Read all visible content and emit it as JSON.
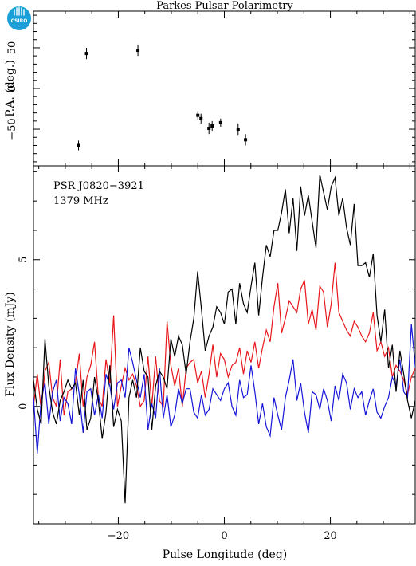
{
  "logo": {
    "text": "CSIRO",
    "color": "#1aa0d6"
  },
  "chart_data": [
    {
      "type": "scatter",
      "title": "Parkes Pulsar Polarimetry",
      "xlabel": "",
      "ylabel": "P.A. (deg.)",
      "xlim": [
        -36,
        36
      ],
      "ylim": [
        -95,
        95
      ],
      "yticks": [
        -50,
        0,
        50
      ],
      "points": [
        {
          "x": -27.5,
          "y": -70,
          "err": 6
        },
        {
          "x": -26.0,
          "y": 43,
          "err": 7
        },
        {
          "x": -16.3,
          "y": 47,
          "err": 7
        },
        {
          "x": -5.0,
          "y": -33,
          "err": 5
        },
        {
          "x": -4.4,
          "y": -37,
          "err": 6
        },
        {
          "x": -2.9,
          "y": -49,
          "err": 7
        },
        {
          "x": -2.3,
          "y": -46,
          "err": 6
        },
        {
          "x": -0.7,
          "y": -42,
          "err": 5
        },
        {
          "x": 2.6,
          "y": -50,
          "err": 7
        },
        {
          "x": 4.0,
          "y": -63,
          "err": 7
        }
      ]
    },
    {
      "type": "line",
      "xlabel": "Pulse Longitude (deg)",
      "ylabel": "Flux Density (mJy)",
      "xlim": [
        -36,
        36
      ],
      "ylim": [
        -4.0,
        8.2
      ],
      "xticks": [
        -20,
        0,
        20
      ],
      "yticks": [
        0,
        5
      ],
      "annotations": [
        "PSR J0820−3921",
        "1379 MHz"
      ],
      "x_start": -36.0,
      "x_step": 0.72,
      "series": [
        {
          "color": "#000000",
          "values": [
            0.9,
            -0.1,
            -0.6,
            2.3,
            0.7,
            -0.2,
            -0.6,
            0.2,
            0.5,
            0.9,
            0.6,
            0.8,
            -0.3,
            0.9,
            -0.8,
            -0.4,
            1.0,
            0.2,
            -1.1,
            -0.2,
            1.4,
            -0.7,
            -0.1,
            -0.5,
            -3.3,
            0.3,
            0.9,
            0.3,
            2.0,
            1.2,
            1.0,
            -0.8,
            0.7,
            1.2,
            1.0,
            0.6,
            2.3,
            1.7,
            2.4,
            2.1,
            1.1,
            2.2,
            3.0,
            4.6,
            3.3,
            1.9,
            2.4,
            2.7,
            3.4,
            3.2,
            2.8,
            3.9,
            4.0,
            2.8,
            4.2,
            3.5,
            3.2,
            4.1,
            4.9,
            3.1,
            4.4,
            5.5,
            5.1,
            6.0,
            6.0,
            6.6,
            7.4,
            5.9,
            7.1,
            5.3,
            7.5,
            6.5,
            7.2,
            6.3,
            5.4,
            7.9,
            7.3,
            6.7,
            7.5,
            7.8,
            6.5,
            7.1,
            6.1,
            5.5,
            6.9,
            4.8,
            4.8,
            4.9,
            4.4,
            5.2,
            3.1,
            2.2,
            3.3,
            1.3,
            2.1,
            0.5,
            1.9,
            1.1,
            0.2,
            -0.4,
            0.2,
            -0.5,
            0.9,
            1.0,
            0.5,
            0.7,
            0.2,
            -0.3,
            0.0,
            1.0,
            0.2,
            -0.6,
            0.2,
            0.8,
            -0.4,
            0.2,
            0.0,
            -0.6,
            0.6,
            1.1,
            0.2,
            -0.2,
            0.8,
            -0.3,
            -0.7,
            0.0,
            0.2,
            0.4,
            0.8,
            -0.6,
            1.2,
            0.4,
            0.8,
            0.2,
            0.6,
            1.0,
            0.0,
            -0.5,
            0.4,
            0.9,
            -0.3,
            0.3,
            0.2,
            -0.5,
            0.5,
            0.1,
            0.3,
            0.8,
            0.3,
            0.1,
            0.4,
            1.3,
            0.6,
            0.4,
            -0.5,
            0.3,
            0.5,
            0.9,
            0.7,
            0.3,
            0.3,
            0.0,
            1.0,
            1.2,
            0.9,
            0.0,
            0.7,
            0.0,
            0.9,
            0.8,
            0.2,
            0.2,
            1.2,
            0.6,
            0.4,
            0.3,
            0.5,
            1.2,
            0.8,
            0.0,
            -0.6,
            0.4,
            0.6,
            0.5,
            1.8,
            1.5,
            2.0,
            -1.4,
            0.4,
            0.6,
            0.7,
            0.1,
            -0.2,
            -0.6,
            0.4,
            0.2,
            -0.1,
            0.2,
            0.9,
            0.8,
            0.5,
            1.2,
            1.6,
            0.9,
            1.1,
            0.6,
            1.8,
            1.0,
            1.4,
            2.2,
            1.2,
            1.0,
            1.9,
            0.2,
            -0.5,
            0.0,
            2.0,
            0.7,
            0.0,
            -0.4
          ]
        },
        {
          "color": "#e8171c",
          "values": [
            0.0,
            1.1,
            -0.1,
            1.2,
            1.5,
            0.3,
            0.0,
            1.6,
            -0.3,
            0.5,
            0.6,
            0.8,
            1.8,
            0.0,
            1.0,
            1.4,
            2.2,
            0.3,
            0.0,
            1.6,
            0.8,
            3.1,
            0.0,
            0.7,
            1.3,
            0.9,
            1.1,
            0.7,
            0.0,
            0.2,
            1.7,
            0.0,
            1.7,
            0.2,
            0.0,
            2.9,
            1.4,
            0.7,
            1.3,
            0.0,
            1.3,
            1.5,
            1.6,
            0.8,
            1.2,
            0.3,
            1.1,
            2.1,
            1.0,
            1.8,
            1.6,
            1.0,
            1.4,
            1.5,
            2.0,
            1.1,
            1.9,
            1.5,
            2.2,
            1.3,
            2.0,
            2.6,
            2.2,
            3.4,
            4.2,
            2.5,
            3.0,
            3.6,
            3.4,
            3.2,
            4.0,
            4.3,
            2.8,
            3.3,
            2.6,
            4.1,
            3.9,
            2.7,
            3.5,
            4.9,
            3.2,
            2.9,
            2.6,
            2.4,
            2.9,
            2.7,
            2.4,
            2.2,
            2.5,
            3.2,
            1.9,
            2.2,
            1.7,
            2.0,
            1.0,
            1.4,
            1.2,
            0.9,
            0.4,
            1.0,
            1.3,
            0.6,
            1.0,
            0.9,
            0.4,
            0.5,
            0.8,
            0.0,
            0.6,
            0.9,
            0.5,
            1.6,
            0.7,
            0.6,
            1.0,
            1.2,
            0.8,
            0.0,
            1.5,
            0.5,
            1.1,
            0.5,
            0.0,
            1.7,
            1.0,
            0.3,
            0.7,
            0.2,
            0.9,
            0.6,
            0.0,
            1.3,
            0.5,
            1.1,
            0.0,
            0.6,
            0.9,
            0.8,
            0.0,
            1.3,
            0.7,
            1.5,
            0.6,
            0.0,
            1.4,
            0.4,
            0.8,
            2.0,
            1.0,
            0.5,
            0.0,
            1.3,
            0.8,
            1.7,
            0.0,
            0.7,
            0.3,
            1.0,
            2.1,
            0.6,
            1.1,
            0.4,
            1.5,
            0.0,
            1.2,
            1.4,
            0.3,
            0.9,
            1.6,
            0.3,
            0.0,
            1.0,
            1.5,
            2.3,
            0.8,
            0.7,
            1.9,
            0.2,
            1.0,
            1.5,
            0.9,
            0.5,
            0.0,
            0.9,
            1.6,
            1.3,
            0.8,
            1.2,
            0.5,
            0.6,
            0.0,
            0.9,
            1.0,
            0.0,
            0.5,
            0.7,
            1.3,
            0.8,
            0.4,
            1.1,
            0.3,
            1.5,
            0.5,
            0.0,
            0.8,
            0.0,
            0.9,
            0.6,
            0.4,
            1.2,
            0.7,
            0.0,
            0.9,
            0.4,
            0.6,
            0.0,
            1.1,
            0.5,
            0.8,
            0.0,
            0.4,
            0.6
          ]
        },
        {
          "color": "#1515d8",
          "values": [
            0.3,
            -1.6,
            0.2,
            0.8,
            -0.6,
            0.5,
            0.9,
            -0.5,
            0.3,
            0.1,
            -0.6,
            1.3,
            0.4,
            -0.9,
            0.5,
            0.6,
            -0.3,
            0.4,
            -0.4,
            1.1,
            0.7,
            -0.1,
            0.8,
            0.9,
            0.3,
            2.0,
            1.5,
            0.9,
            0.3,
            1.1,
            -0.8,
            0.1,
            -0.4,
            1.3,
            -0.4,
            0.4,
            -0.7,
            -0.3,
            0.6,
            0.1,
            0.6,
            0.6,
            -0.2,
            -0.4,
            0.4,
            -0.3,
            -0.1,
            0.6,
            0.4,
            0.2,
            0.6,
            0.8,
            0.0,
            -0.3,
            0.9,
            0.3,
            0.4,
            1.4,
            0.5,
            -0.6,
            0.1,
            -0.7,
            -1.0,
            0.3,
            -0.3,
            -0.8,
            0.3,
            0.9,
            1.6,
            0.2,
            0.8,
            -0.2,
            -0.9,
            0.5,
            0.4,
            -0.1,
            0.6,
            0.2,
            -0.5,
            0.7,
            0.2,
            1.1,
            0.8,
            -0.1,
            0.6,
            0.3,
            0.5,
            -0.3,
            0.2,
            0.6,
            -0.2,
            -0.4,
            0.0,
            0.3,
            1.0,
            0.7,
            1.6,
            0.5,
            0.3,
            2.8,
            1.4,
            0.1,
            0.3,
            0.9,
            0.6,
            -0.1,
            0.2,
            0.8,
            0.0,
            1.0,
            0.4,
            0.3,
            0.0,
            0.6,
            0.8,
            0.3,
            0.5,
            0.9,
            0.2,
            0.4,
            0.7,
            -0.2,
            0.5,
            0.1,
            0.6,
            0.3,
            1.2,
            0.4,
            0.2,
            0.9,
            0.1,
            0.3,
            0.6,
            0.0,
            0.7,
            1.1,
            0.4,
            0.2,
            0.6,
            0.3,
            0.8,
            0.1,
            0.5,
            0.9,
            0.4,
            1.3,
            0.6,
            0.2,
            0.3,
            0.7,
            1.0,
            0.0,
            0.5,
            0.8,
            0.3,
            0.6,
            1.1,
            0.2,
            0.4,
            0.9,
            0.6,
            0.1,
            0.8,
            1.2,
            0.0,
            0.4,
            0.7,
            0.2,
            0.5,
            1.5,
            0.3,
            0.6,
            0.4,
            1.0,
            0.8,
            0.2,
            0.4,
            1.0,
            0.2,
            0.7,
            0.5,
            0.9,
            0.3,
            0.0,
            0.6,
            1.1,
            0.5,
            0.2,
            0.4,
            0.8,
            0.3,
            0.6,
            0.9,
            0.1,
            0.5,
            0.7,
            0.4,
            0.2,
            0.6,
            0.8,
            0.2,
            0.5,
            1.0,
            0.3,
            0.7,
            0.4,
            0.9,
            0.6,
            0.2,
            0.8,
            0.5,
            0.3,
            0.7,
            0.4,
            0.6
          ]
        }
      ]
    }
  ]
}
